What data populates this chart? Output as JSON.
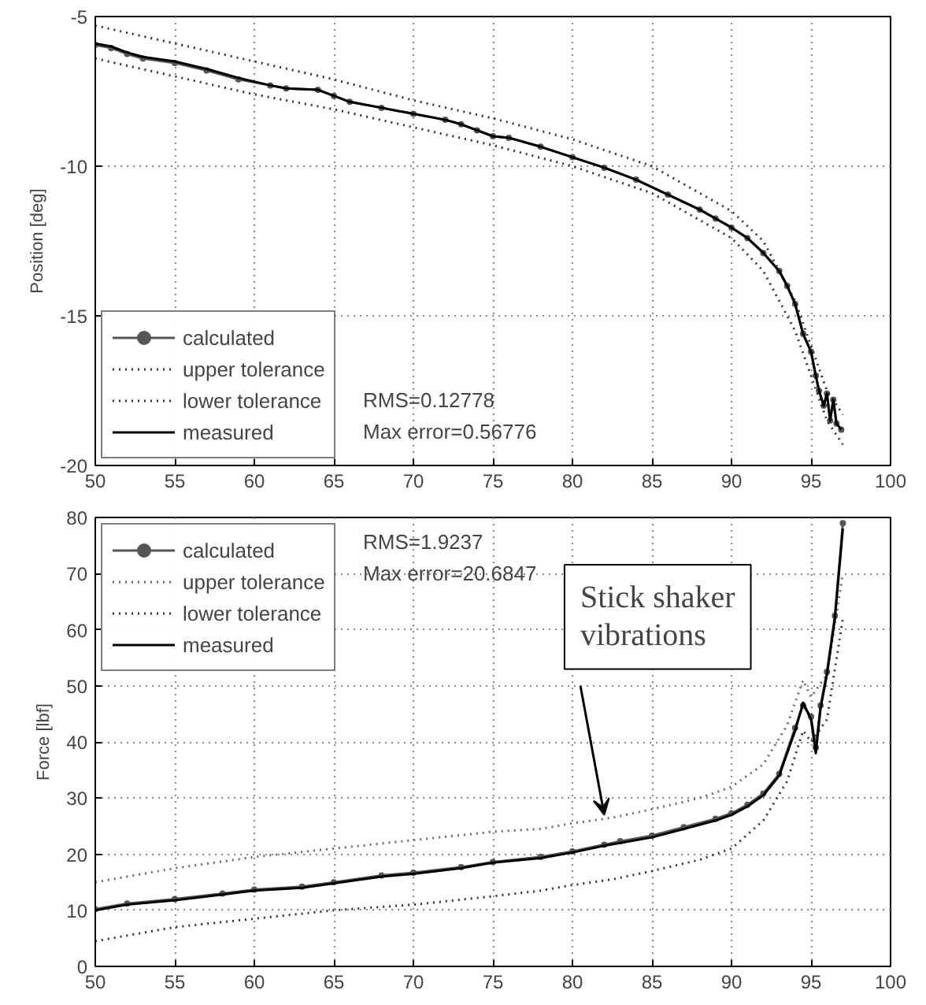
{
  "chart_data": [
    {
      "type": "line",
      "ylabel": "Position [deg]",
      "xlim": [
        50,
        100
      ],
      "ylim": [
        -20,
        -5
      ],
      "xticks": [
        50,
        55,
        60,
        65,
        70,
        75,
        80,
        85,
        90,
        95,
        100
      ],
      "yticks": [
        -20,
        -15,
        -10,
        -5
      ],
      "grid": true,
      "legend": "bottom left",
      "annotations": [
        "RMS=0.12778",
        "Max error=0.56776"
      ],
      "series": [
        {
          "name": "calculated",
          "color": "#555555",
          "marker": "circle",
          "line_style": "solid",
          "x": [
            50,
            51,
            52,
            53,
            55,
            57,
            59,
            61,
            62,
            64,
            65,
            66,
            68,
            70,
            72,
            73,
            74,
            75,
            76,
            78,
            80,
            82,
            84,
            86,
            88,
            89,
            90,
            91,
            92,
            93,
            93.5,
            94,
            94.5,
            95,
            95.3,
            95.5,
            95.8,
            96,
            96.2,
            96.4,
            96.6,
            96.9
          ],
          "values": [
            -5.95,
            -6.05,
            -6.25,
            -6.4,
            -6.55,
            -6.8,
            -7.1,
            -7.3,
            -7.4,
            -7.45,
            -7.65,
            -7.85,
            -8.05,
            -8.25,
            -8.45,
            -8.6,
            -8.8,
            -9.0,
            -9.05,
            -9.35,
            -9.7,
            -10.05,
            -10.45,
            -10.95,
            -11.45,
            -11.75,
            -12.05,
            -12.4,
            -12.9,
            -13.5,
            -14.0,
            -14.6,
            -15.6,
            -16.2,
            -17.0,
            -17.5,
            -18.0,
            -17.6,
            -18.5,
            -17.8,
            -18.6,
            -18.8
          ]
        },
        {
          "name": "upper tolerance",
          "color": "#333333",
          "marker": "none",
          "line_style": "dotted",
          "x": [
            50,
            55,
            60,
            65,
            70,
            75,
            80,
            85,
            90,
            92,
            94,
            95,
            96,
            97
          ],
          "values": [
            -5.3,
            -5.9,
            -6.5,
            -7.1,
            -7.8,
            -8.4,
            -9.1,
            -10.0,
            -11.5,
            -12.5,
            -14.5,
            -16.0,
            -17.5,
            -18.3
          ]
        },
        {
          "name": "lower tolerance",
          "color": "#333333",
          "marker": "none",
          "line_style": "dotted",
          "x": [
            50,
            55,
            60,
            65,
            70,
            75,
            80,
            85,
            90,
            92,
            94,
            95,
            96,
            97
          ],
          "values": [
            -6.4,
            -7.0,
            -7.6,
            -8.1,
            -8.7,
            -9.3,
            -10.0,
            -10.9,
            -12.4,
            -13.5,
            -15.5,
            -17.0,
            -18.5,
            -19.3
          ]
        },
        {
          "name": "measured",
          "color": "#000000",
          "marker": "none",
          "line_style": "solid",
          "x": [
            50,
            51,
            52,
            53,
            55,
            57,
            59,
            61,
            62,
            64,
            65,
            66,
            68,
            70,
            72,
            73,
            74,
            75,
            76,
            78,
            80,
            82,
            84,
            86,
            88,
            89,
            90,
            91,
            92,
            93,
            93.5,
            94,
            94.5,
            95,
            95.3,
            95.5,
            95.8,
            96,
            96.2,
            96.4,
            96.6,
            96.9
          ],
          "values": [
            -5.9,
            -6.0,
            -6.2,
            -6.35,
            -6.5,
            -6.75,
            -7.05,
            -7.3,
            -7.4,
            -7.45,
            -7.65,
            -7.85,
            -8.05,
            -8.25,
            -8.45,
            -8.6,
            -8.8,
            -9.0,
            -9.05,
            -9.35,
            -9.7,
            -10.05,
            -10.45,
            -10.95,
            -11.45,
            -11.75,
            -12.05,
            -12.4,
            -12.9,
            -13.5,
            -14.0,
            -14.6,
            -15.6,
            -16.2,
            -17.0,
            -17.5,
            -18.0,
            -17.6,
            -18.5,
            -17.8,
            -18.6,
            -18.8
          ]
        }
      ]
    },
    {
      "type": "line",
      "ylabel": "Force [lbf]",
      "xlim": [
        50,
        100
      ],
      "ylim": [
        0,
        80
      ],
      "xticks": [
        50,
        55,
        60,
        65,
        70,
        75,
        80,
        85,
        90,
        95,
        100
      ],
      "yticks": [
        0,
        10,
        20,
        30,
        40,
        50,
        60,
        70,
        80
      ],
      "grid": true,
      "legend": "top left",
      "annotations": [
        "RMS=1.9237",
        "Max error=20.6847",
        {
          "text": "Stick shaker vibrations",
          "x": 82,
          "y": 27
        }
      ],
      "series": [
        {
          "name": "calculated",
          "color": "#555555",
          "marker": "circle",
          "line_style": "solid",
          "x": [
            50,
            52,
            55,
            58,
            60,
            63,
            65,
            68,
            70,
            73,
            75,
            78,
            80,
            82,
            83,
            85,
            87,
            89,
            90,
            91,
            92,
            93,
            94,
            94.5,
            95,
            95.3,
            95.6,
            96,
            96.5,
            97
          ],
          "values": [
            10.2,
            11.2,
            12,
            13,
            13.7,
            14.2,
            15,
            16.2,
            16.7,
            17.7,
            18.6,
            19.5,
            20.5,
            21.7,
            22.3,
            23.3,
            24.8,
            26.3,
            27.3,
            28.8,
            30.8,
            34.3,
            42.5,
            46.5,
            44.5,
            39,
            46.5,
            52.5,
            62.5,
            79
          ]
        },
        {
          "name": "upper tolerance",
          "color": "#6a6a6a",
          "marker": "none",
          "line_style": "dotted",
          "x": [
            50,
            55,
            60,
            65,
            70,
            75,
            78,
            80,
            82.5,
            85,
            88,
            90,
            92,
            93.5,
            94.5,
            95,
            96,
            97
          ],
          "values": [
            15,
            17.5,
            19.5,
            21,
            22.5,
            24,
            24.5,
            25.5,
            26.5,
            28,
            30,
            32,
            36,
            43,
            51,
            48,
            52,
            70
          ]
        },
        {
          "name": "lower tolerance",
          "color": "#333333",
          "marker": "none",
          "line_style": "dotted",
          "x": [
            50,
            55,
            60,
            65,
            70,
            75,
            78,
            80,
            82.5,
            85,
            88,
            90,
            92,
            93.5,
            94.5,
            95,
            96,
            97
          ],
          "values": [
            4.5,
            7,
            8.5,
            10,
            11,
            12.5,
            13.5,
            14.5,
            15.5,
            17,
            19,
            21,
            26,
            33,
            42,
            40,
            44,
            62
          ]
        },
        {
          "name": "measured",
          "color": "#000000",
          "marker": "none",
          "line_style": "solid",
          "x": [
            50,
            52,
            55,
            58,
            60,
            63,
            65,
            68,
            70,
            73,
            75,
            78,
            80,
            82,
            83,
            85,
            87,
            89,
            90,
            91,
            92,
            93,
            94,
            94.5,
            95,
            95.3,
            95.6,
            96,
            96.5,
            97
          ],
          "values": [
            10,
            11,
            11.8,
            12.8,
            13.5,
            14,
            14.8,
            16,
            16.5,
            17.5,
            18.5,
            19.3,
            20.3,
            21.5,
            22,
            23,
            24.5,
            26,
            27,
            28.5,
            30.5,
            34,
            42,
            47,
            44,
            38,
            46,
            52,
            62,
            78
          ]
        }
      ]
    }
  ]
}
